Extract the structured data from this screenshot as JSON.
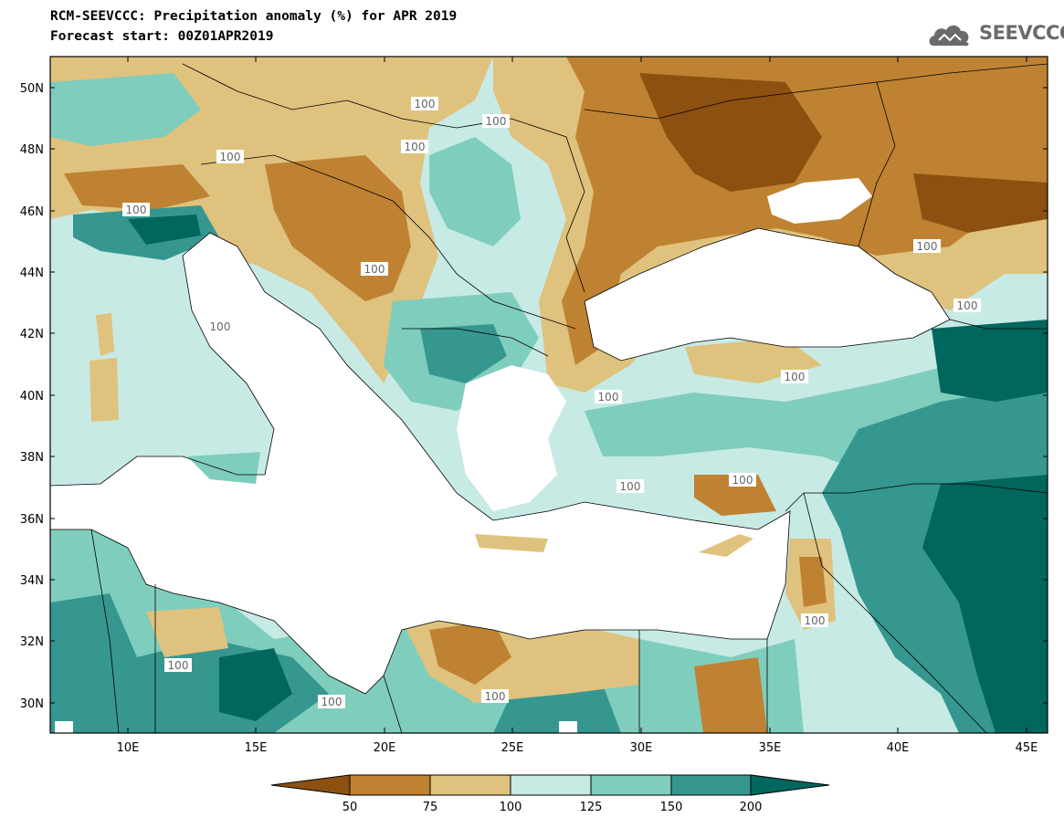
{
  "title_line1": "RCM-SEEVCCC: Precipitation anomaly (%) for APR 2019",
  "title_line2": "Forecast start: 00Z01APR2019",
  "logo_text": "SEEVCCC",
  "lat_labels": [
    "50N",
    "48N",
    "46N",
    "44N",
    "42N",
    "40N",
    "38N",
    "36N",
    "34N",
    "32N",
    "30N"
  ],
  "lon_labels": [
    "10E",
    "15E",
    "20E",
    "25E",
    "30E",
    "35E",
    "40E",
    "45E"
  ],
  "contour_label": "100",
  "colorbar": {
    "labels": [
      "50",
      "75",
      "100",
      "125",
      "150",
      "200"
    ],
    "colors": [
      "#8c5010",
      "#bf8232",
      "#dfc27d",
      "#c7eae5",
      "#7fcdbd",
      "#35978f",
      "#01665e"
    ]
  },
  "map_colors": {
    "sea": "#ffffff",
    "below_50": "#8c5010",
    "50_75": "#bf8232",
    "75_100": "#dfc27d",
    "100_125": "#c7eae5",
    "125_150": "#7fcdbd",
    "150_200": "#35978f",
    "above_200": "#01665e"
  }
}
